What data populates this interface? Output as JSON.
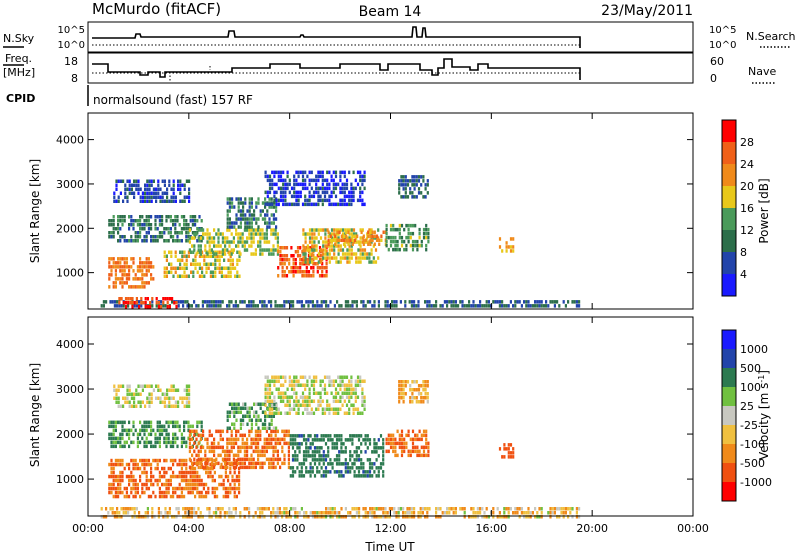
{
  "header": {
    "station": "McMurdo (fitACF)",
    "beam": "Beam 14",
    "date": "23/May/2011"
  },
  "strip_panels": {
    "nsky_label": "N.Sky",
    "nsearch_label": "N.Search",
    "noise_ticks": [
      "10^5",
      "10^0"
    ],
    "freq_label_line1": "Freq.",
    "freq_label_line2": "[MHz]",
    "freq_ticks": [
      "18",
      "8"
    ],
    "nave_label": "Nave",
    "nave_ticks": [
      "60",
      "0"
    ],
    "cpid_label": "CPID",
    "cpid_value": "normalsound (fast) 157 RF"
  },
  "colors": {
    "power_scale": [
      "#1a1aff",
      "#2244aa",
      "#2c6e4a",
      "#4a9a5a",
      "#e8c81a",
      "#f08a1a",
      "#f06018",
      "#ff0000"
    ],
    "velocity_scale": [
      "#1a1aff",
      "#2244aa",
      "#2c7a50",
      "#70c040",
      "#c8c8c0",
      "#f0c040",
      "#f08a1a",
      "#f05010",
      "#ff0000"
    ]
  },
  "chart_data": [
    {
      "type": "heatmap",
      "name": "backscatter power",
      "xlabel": "Time UT",
      "ylabel": "Slant Range [km]",
      "xticks": [
        "00:00",
        "04:00",
        "08:00",
        "12:00",
        "16:00",
        "20:00",
        "00:00"
      ],
      "xlim_hours": [
        0,
        24
      ],
      "yticks": [
        "1000",
        "2000",
        "3000",
        "4000"
      ],
      "ylim_km": [
        180,
        4600
      ],
      "colorbar_label": "Power [dB]",
      "colorbar_ticks": [
        "4",
        "8",
        "12",
        "16",
        "20",
        "24",
        "28"
      ],
      "colorbar_range": [
        0,
        32
      ],
      "scatter_regions": [
        {
          "t0": 0.8,
          "t1": 2.6,
          "r0": 650,
          "r1": 1350,
          "value": 24
        },
        {
          "t0": 0.8,
          "t1": 4.5,
          "r0": 1750,
          "r1": 2300,
          "value": 10
        },
        {
          "t0": 1.0,
          "t1": 4.0,
          "r0": 2600,
          "r1": 3100,
          "value": 6
        },
        {
          "t0": 3.0,
          "t1": 6.0,
          "r0": 900,
          "r1": 1500,
          "value": 18
        },
        {
          "t0": 4.0,
          "t1": 7.5,
          "r0": 1400,
          "r1": 2000,
          "value": 16
        },
        {
          "t0": 5.5,
          "t1": 7.5,
          "r0": 2000,
          "r1": 2700,
          "value": 10
        },
        {
          "t0": 7.5,
          "t1": 9.5,
          "r0": 900,
          "r1": 1600,
          "value": 26
        },
        {
          "t0": 8.5,
          "t1": 11.5,
          "r0": 1200,
          "r1": 2000,
          "value": 18
        },
        {
          "t0": 9.5,
          "t1": 11.8,
          "r0": 1600,
          "r1": 1950,
          "value": 22
        },
        {
          "t0": 7.0,
          "t1": 11.0,
          "r0": 2500,
          "r1": 3300,
          "value": 5
        },
        {
          "t0": 11.8,
          "t1": 13.5,
          "r0": 1500,
          "r1": 2100,
          "value": 13
        },
        {
          "t0": 12.3,
          "t1": 13.5,
          "r0": 2700,
          "r1": 3200,
          "value": 8
        },
        {
          "t0": 16.3,
          "t1": 16.9,
          "r0": 1500,
          "r1": 1800,
          "value": 21
        },
        {
          "t0": 0.5,
          "t1": 19.5,
          "r0": 200,
          "r1": 380,
          "value": 8
        },
        {
          "t0": 1.2,
          "t1": 3.5,
          "r0": 200,
          "r1": 450,
          "value": 28
        }
      ]
    },
    {
      "type": "heatmap",
      "name": "line-of-sight velocity",
      "xlabel": "Time UT",
      "ylabel": "Slant Range [km]",
      "xticks": [
        "00:00",
        "04:00",
        "08:00",
        "12:00",
        "16:00",
        "20:00",
        "00:00"
      ],
      "xlim_hours": [
        0,
        24
      ],
      "yticks": [
        "1000",
        "2000",
        "3000",
        "4000"
      ],
      "ylim_km": [
        180,
        4600
      ],
      "colorbar_label": "Velocity [m s^-1]",
      "colorbar_label_main": "Velocity [m s",
      "colorbar_label_exp": "-1",
      "colorbar_label_end": "]",
      "colorbar_ticks": [
        "1000",
        "500",
        "100",
        "25",
        "-25",
        "-100",
        "-500",
        "-1000"
      ],
      "scatter_regions": [
        {
          "t0": 0.8,
          "t1": 6.0,
          "r0": 650,
          "r1": 1450,
          "value": -300
        },
        {
          "t0": 0.8,
          "t1": 4.5,
          "r0": 1750,
          "r1": 2300,
          "value": 80
        },
        {
          "t0": 1.0,
          "t1": 4.0,
          "r0": 2600,
          "r1": 3100,
          "value": 0
        },
        {
          "t0": 4.0,
          "t1": 8.0,
          "r0": 1300,
          "r1": 2100,
          "value": -300
        },
        {
          "t0": 5.5,
          "t1": 7.5,
          "r0": 2100,
          "r1": 2700,
          "value": 60
        },
        {
          "t0": 8.0,
          "t1": 11.7,
          "r0": 1100,
          "r1": 2000,
          "value": 250
        },
        {
          "t0": 7.0,
          "t1": 11.0,
          "r0": 2500,
          "r1": 3300,
          "value": 0
        },
        {
          "t0": 11.8,
          "t1": 13.5,
          "r0": 1500,
          "r1": 2100,
          "value": -300
        },
        {
          "t0": 12.3,
          "t1": 13.5,
          "r0": 2700,
          "r1": 3200,
          "value": -60
        },
        {
          "t0": 16.3,
          "t1": 16.9,
          "r0": 1500,
          "r1": 1800,
          "value": -400
        },
        {
          "t0": 0.5,
          "t1": 19.5,
          "r0": 200,
          "r1": 380,
          "value": -40
        }
      ]
    }
  ]
}
